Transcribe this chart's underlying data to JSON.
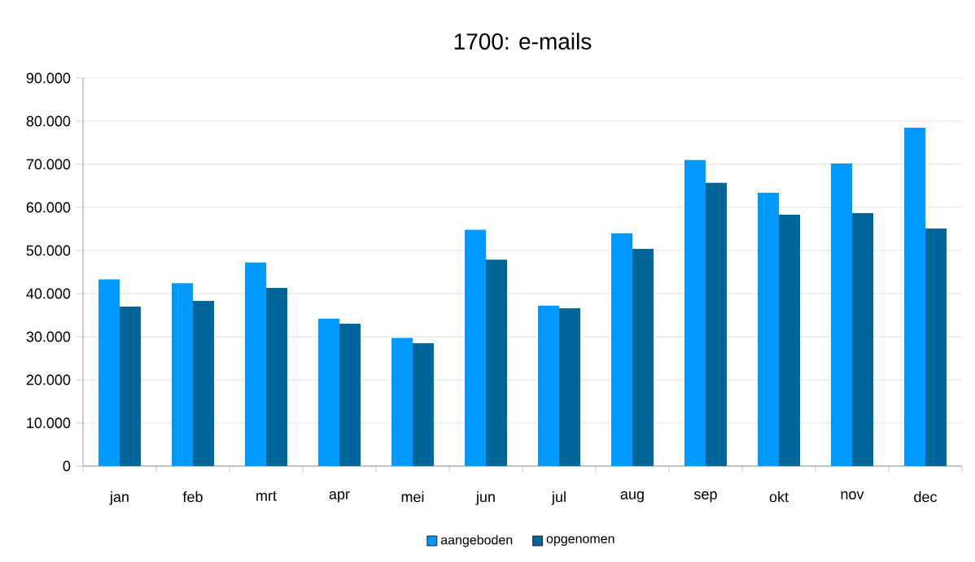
{
  "chart_data": {
    "type": "bar",
    "title": "1700: e-mails",
    "categories": [
      "jan",
      "feb",
      "mrt",
      "apr",
      "mei",
      "jun",
      "jul",
      "aug",
      "sep",
      "okt",
      "nov",
      "dec"
    ],
    "series": [
      {
        "name": "aangeboden",
        "color": "#0099ff",
        "values": [
          43300,
          42400,
          47200,
          34200,
          29700,
          54800,
          37200,
          54000,
          71000,
          63400,
          70200,
          78500
        ]
      },
      {
        "name": "opgenomen",
        "color": "#006699",
        "values": [
          37000,
          38300,
          41300,
          33000,
          28500,
          47900,
          36600,
          50400,
          65700,
          58300,
          58700,
          55100
        ]
      }
    ],
    "ylim": [
      0,
      90000
    ],
    "yticks": [
      {
        "value": 0,
        "label": "0"
      },
      {
        "value": 10000,
        "label": "10.000"
      },
      {
        "value": 20000,
        "label": "20.000"
      },
      {
        "value": 30000,
        "label": "30.000"
      },
      {
        "value": 40000,
        "label": "40.000"
      },
      {
        "value": 50000,
        "label": "50.000"
      },
      {
        "value": 60000,
        "label": "60.000"
      },
      {
        "value": 70000,
        "label": "70.000"
      },
      {
        "value": 80000,
        "label": "80.000"
      },
      {
        "value": 90000,
        "label": "90.000"
      }
    ],
    "grid": "y",
    "legend": "bottom"
  }
}
